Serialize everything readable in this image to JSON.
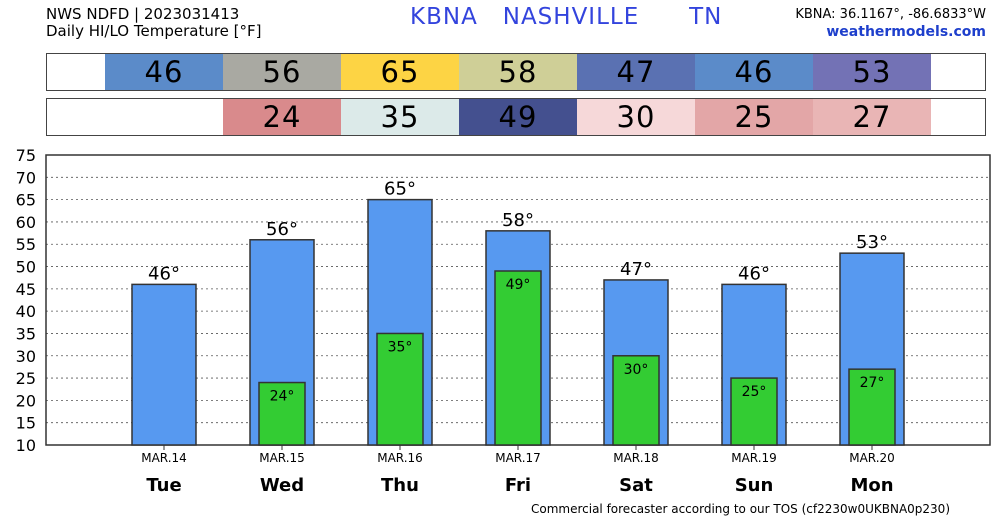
{
  "header": {
    "product": "NWS NDFD | 2023031413",
    "subtitle": "Daily HI/LO Temperature [°F]",
    "station": "KBNA   NASHVILLE      TN",
    "coords": "KBNA: 36.1167°, -86.6833°W",
    "site": "weathermodels.com"
  },
  "hi_boxes": [
    {
      "value": "46",
      "color": "#5b8bc9"
    },
    {
      "value": "56",
      "color": "#a9a9a2"
    },
    {
      "value": "65",
      "color": "#fdd444"
    },
    {
      "value": "58",
      "color": "#cfcf97"
    },
    {
      "value": "47",
      "color": "#5a71b2"
    },
    {
      "value": "46",
      "color": "#5b8bc9"
    },
    {
      "value": "53",
      "color": "#7372b5"
    }
  ],
  "lo_boxes": [
    {
      "value": "",
      "color": "#ffffff"
    },
    {
      "value": "24",
      "color": "#d98a8c"
    },
    {
      "value": "35",
      "color": "#dceae9"
    },
    {
      "value": "49",
      "color": "#44508f"
    },
    {
      "value": "30",
      "color": "#f6d8d9"
    },
    {
      "value": "25",
      "color": "#e3a6a7"
    },
    {
      "value": "27",
      "color": "#e9b5b5"
    }
  ],
  "chart_data": {
    "type": "bar",
    "categories": [
      "Tue",
      "Wed",
      "Thu",
      "Fri",
      "Sat",
      "Sun",
      "Mon"
    ],
    "dates": [
      "MAR.14",
      "MAR.15",
      "MAR.16",
      "MAR.17",
      "MAR.18",
      "MAR.19",
      "MAR.20"
    ],
    "series": [
      {
        "values": [
          46,
          56,
          65,
          58,
          47,
          46,
          53
        ],
        "labels": [
          "46°",
          "56°",
          "65°",
          "58°",
          "47°",
          "46°",
          "53°"
        ],
        "color": "#5799f0"
      },
      {
        "values": [
          null,
          24,
          35,
          49,
          30,
          25,
          27
        ],
        "labels": [
          "",
          "24°",
          "35°",
          "49°",
          "30°",
          "25°",
          "27°"
        ],
        "color": "#33cc33"
      }
    ],
    "yticks": [
      "10",
      "15",
      "20",
      "25",
      "30",
      "35",
      "40",
      "45",
      "50",
      "55",
      "60",
      "65",
      "70",
      "75"
    ],
    "ylim": [
      10,
      75
    ],
    "grid": true
  },
  "footer": "Commercial forecaster according to our TOS (cf2230w0UKBNA0p230)"
}
